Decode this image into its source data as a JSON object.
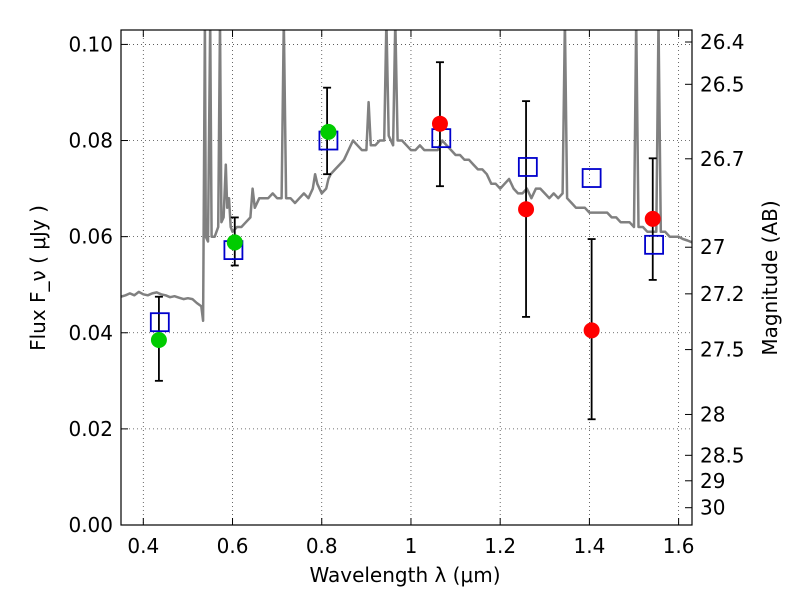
{
  "chart_data": {
    "type": "scatter",
    "xlabel": "Wavelength  λ (μm)",
    "ylabel": "Flux  F_ν  ( μJy )",
    "ylabel_right": "Magnitude (AB)",
    "xlim": [
      0.35,
      1.63
    ],
    "ylim": [
      0.0,
      0.103
    ],
    "x_ticks": [
      0.4,
      0.6,
      0.8,
      1.0,
      1.2,
      1.4,
      1.6
    ],
    "x_tick_labels": [
      "0.4",
      "0.6",
      "0.8",
      "1",
      "1.2",
      "1.4",
      "1.6"
    ],
    "y_ticks": [
      0.0,
      0.02,
      0.04,
      0.06,
      0.08,
      0.1
    ],
    "y_tick_labels": [
      "0.00",
      "0.02",
      "0.04",
      "0.06",
      "0.08",
      "0.10"
    ],
    "right_ticks": [
      {
        "label": "26.4",
        "flux": 0.1005
      },
      {
        "label": "26.5",
        "flux": 0.0917
      },
      {
        "label": "26.7",
        "flux": 0.0762
      },
      {
        "label": "27",
        "flux": 0.0578
      },
      {
        "label": "27.2",
        "flux": 0.0481
      },
      {
        "label": "27.5",
        "flux": 0.0365
      },
      {
        "label": "28",
        "flux": 0.023
      },
      {
        "label": "28.5",
        "flux": 0.0145
      },
      {
        "label": "29",
        "flux": 0.0092
      },
      {
        "label": "30",
        "flux": 0.0036
      }
    ],
    "grid": true,
    "series": [
      {
        "kind": "line",
        "color": "#808080",
        "points": [
          [
            0.35,
            0.0475
          ],
          [
            0.36,
            0.0478
          ],
          [
            0.37,
            0.0482
          ],
          [
            0.38,
            0.0478
          ],
          [
            0.39,
            0.0485
          ],
          [
            0.4,
            0.048
          ],
          [
            0.41,
            0.0478
          ],
          [
            0.42,
            0.0482
          ],
          [
            0.43,
            0.0484
          ],
          [
            0.44,
            0.048
          ],
          [
            0.45,
            0.0478
          ],
          [
            0.46,
            0.0474
          ],
          [
            0.47,
            0.0476
          ],
          [
            0.48,
            0.0473
          ],
          [
            0.49,
            0.047
          ],
          [
            0.5,
            0.0472
          ],
          [
            0.51,
            0.047
          ],
          [
            0.52,
            0.0462
          ],
          [
            0.53,
            0.0455
          ],
          [
            0.534,
            0.0425
          ],
          [
            0.538,
            0.105
          ],
          [
            0.54,
            0.06
          ],
          [
            0.545,
            0.059
          ],
          [
            0.55,
            0.105
          ],
          [
            0.553,
            0.06
          ],
          [
            0.56,
            0.06
          ],
          [
            0.568,
            0.062
          ],
          [
            0.572,
            0.105
          ],
          [
            0.575,
            0.063
          ],
          [
            0.58,
            0.064
          ],
          [
            0.585,
            0.075
          ],
          [
            0.588,
            0.066
          ],
          [
            0.592,
            0.068
          ],
          [
            0.596,
            0.062
          ],
          [
            0.6,
            0.061
          ],
          [
            0.61,
            0.062
          ],
          [
            0.62,
            0.062
          ],
          [
            0.63,
            0.063
          ],
          [
            0.64,
            0.064
          ],
          [
            0.645,
            0.07
          ],
          [
            0.65,
            0.066
          ],
          [
            0.66,
            0.068
          ],
          [
            0.67,
            0.068
          ],
          [
            0.68,
            0.068
          ],
          [
            0.69,
            0.069
          ],
          [
            0.7,
            0.068
          ],
          [
            0.71,
            0.068
          ],
          [
            0.715,
            0.105
          ],
          [
            0.72,
            0.068
          ],
          [
            0.73,
            0.068
          ],
          [
            0.74,
            0.067
          ],
          [
            0.75,
            0.068
          ],
          [
            0.76,
            0.069
          ],
          [
            0.77,
            0.068
          ],
          [
            0.78,
            0.07
          ],
          [
            0.785,
            0.073
          ],
          [
            0.79,
            0.071
          ],
          [
            0.8,
            0.069
          ],
          [
            0.81,
            0.07
          ],
          [
            0.815,
            0.072
          ],
          [
            0.82,
            0.073
          ],
          [
            0.83,
            0.074
          ],
          [
            0.84,
            0.075
          ],
          [
            0.85,
            0.076
          ],
          [
            0.86,
            0.078
          ],
          [
            0.87,
            0.08
          ],
          [
            0.88,
            0.079
          ],
          [
            0.89,
            0.078
          ],
          [
            0.9,
            0.078
          ],
          [
            0.905,
            0.088
          ],
          [
            0.91,
            0.079
          ],
          [
            0.92,
            0.079
          ],
          [
            0.93,
            0.08
          ],
          [
            0.94,
            0.08
          ],
          [
            0.945,
            0.105
          ],
          [
            0.95,
            0.081
          ],
          [
            0.96,
            0.079
          ],
          [
            0.965,
            0.105
          ],
          [
            0.97,
            0.08
          ],
          [
            0.98,
            0.08
          ],
          [
            0.99,
            0.079
          ],
          [
            1.0,
            0.078
          ],
          [
            1.01,
            0.078
          ],
          [
            1.02,
            0.079
          ],
          [
            1.03,
            0.078
          ],
          [
            1.04,
            0.078
          ],
          [
            1.05,
            0.078
          ],
          [
            1.06,
            0.078
          ],
          [
            1.07,
            0.08
          ],
          [
            1.08,
            0.079
          ],
          [
            1.09,
            0.078
          ],
          [
            1.1,
            0.077
          ],
          [
            1.11,
            0.077
          ],
          [
            1.12,
            0.076
          ],
          [
            1.13,
            0.076
          ],
          [
            1.14,
            0.075
          ],
          [
            1.15,
            0.074
          ],
          [
            1.16,
            0.074
          ],
          [
            1.17,
            0.073
          ],
          [
            1.18,
            0.071
          ],
          [
            1.19,
            0.071
          ],
          [
            1.2,
            0.07
          ],
          [
            1.21,
            0.071
          ],
          [
            1.22,
            0.072
          ],
          [
            1.23,
            0.07
          ],
          [
            1.24,
            0.069
          ],
          [
            1.25,
            0.069
          ],
          [
            1.26,
            0.07
          ],
          [
            1.27,
            0.068
          ],
          [
            1.28,
            0.07
          ],
          [
            1.29,
            0.07
          ],
          [
            1.3,
            0.069
          ],
          [
            1.31,
            0.068
          ],
          [
            1.32,
            0.069
          ],
          [
            1.33,
            0.068
          ],
          [
            1.34,
            0.069
          ],
          [
            1.345,
            0.105
          ],
          [
            1.35,
            0.068
          ],
          [
            1.36,
            0.067
          ],
          [
            1.37,
            0.066
          ],
          [
            1.38,
            0.066
          ],
          [
            1.39,
            0.066
          ],
          [
            1.4,
            0.065
          ],
          [
            1.41,
            0.065
          ],
          [
            1.42,
            0.065
          ],
          [
            1.43,
            0.065
          ],
          [
            1.44,
            0.065
          ],
          [
            1.45,
            0.064
          ],
          [
            1.46,
            0.064
          ],
          [
            1.47,
            0.063
          ],
          [
            1.48,
            0.063
          ],
          [
            1.49,
            0.063
          ],
          [
            1.5,
            0.062
          ],
          [
            1.505,
            0.105
          ],
          [
            1.51,
            0.062
          ],
          [
            1.52,
            0.062
          ],
          [
            1.53,
            0.061
          ],
          [
            1.54,
            0.061
          ],
          [
            1.55,
            0.061
          ],
          [
            1.555,
            0.105
          ],
          [
            1.56,
            0.061
          ],
          [
            1.57,
            0.061
          ],
          [
            1.58,
            0.06
          ],
          [
            1.59,
            0.06
          ],
          [
            1.6,
            0.06
          ],
          [
            1.61,
            0.0595
          ],
          [
            1.62,
            0.0592
          ],
          [
            1.63,
            0.0588
          ]
        ]
      },
      {
        "kind": "errorbar",
        "color": "#000000",
        "points": [
          {
            "x": 0.435,
            "low": 0.03,
            "high": 0.0475
          },
          {
            "x": 0.605,
            "low": 0.054,
            "high": 0.064
          },
          {
            "x": 0.812,
            "low": 0.073,
            "high": 0.091
          },
          {
            "x": 1.065,
            "low": 0.0705,
            "high": 0.0963
          },
          {
            "x": 1.258,
            "low": 0.0433,
            "high": 0.0882
          },
          {
            "x": 1.405,
            "low": 0.022,
            "high": 0.0595
          },
          {
            "x": 1.542,
            "low": 0.051,
            "high": 0.0763
          }
        ]
      },
      {
        "kind": "square",
        "color": "#0000cc",
        "points": [
          [
            0.437,
            0.0422
          ],
          [
            0.602,
            0.0572
          ],
          [
            0.815,
            0.08
          ],
          [
            1.068,
            0.0805
          ],
          [
            1.262,
            0.0745
          ],
          [
            1.405,
            0.0722
          ],
          [
            1.545,
            0.0583
          ]
        ]
      },
      {
        "kind": "circle",
        "color": "#00cc00",
        "points": [
          [
            0.435,
            0.0385
          ],
          [
            0.605,
            0.0588
          ],
          [
            0.815,
            0.0818
          ]
        ]
      },
      {
        "kind": "circle",
        "color": "#ff0000",
        "points": [
          [
            1.065,
            0.0835
          ],
          [
            1.258,
            0.0657
          ],
          [
            1.405,
            0.0405
          ],
          [
            1.542,
            0.0637
          ]
        ]
      }
    ]
  }
}
